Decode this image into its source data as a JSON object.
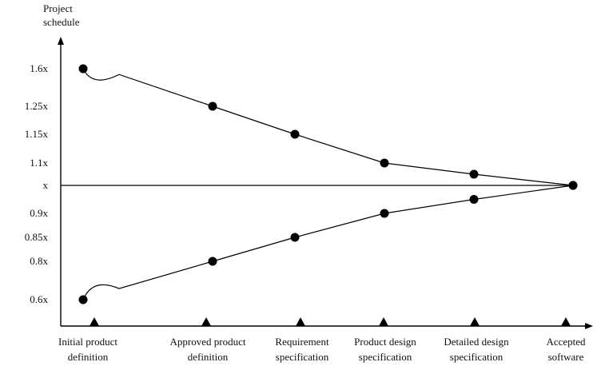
{
  "chart_data": {
    "type": "line",
    "title": "",
    "ylabel": [
      "Project",
      "schedule"
    ],
    "xlabel": "",
    "y_ticks": [
      {
        "value": 1.6,
        "label": "1.6x"
      },
      {
        "value": 1.25,
        "label": "1.25x"
      },
      {
        "value": 1.15,
        "label": "1.15x"
      },
      {
        "value": 1.1,
        "label": "1.1x"
      },
      {
        "value": 1.0,
        "label": "x"
      },
      {
        "value": 0.9,
        "label": "0.9x"
      },
      {
        "value": 0.85,
        "label": "0.85x"
      },
      {
        "value": 0.8,
        "label": "0.8x"
      },
      {
        "value": 0.6,
        "label": "0.6x"
      }
    ],
    "categories": [
      [
        "Initial product",
        "definition"
      ],
      [
        "Approved product",
        "definition"
      ],
      [
        "Requirement",
        "specification"
      ],
      [
        "Product design",
        "specification"
      ],
      [
        "Detailed design",
        "specification"
      ],
      [
        "Accepted",
        "software"
      ]
    ],
    "series": [
      {
        "values": [
          1.6,
          1.25,
          1.15,
          1.1,
          1.05,
          1.0
        ]
      },
      {
        "values": [
          0.6,
          0.8,
          0.85,
          0.9,
          0.95,
          1.0
        ]
      }
    ],
    "reference_line": 1.0,
    "grid": false,
    "legend": "none"
  }
}
